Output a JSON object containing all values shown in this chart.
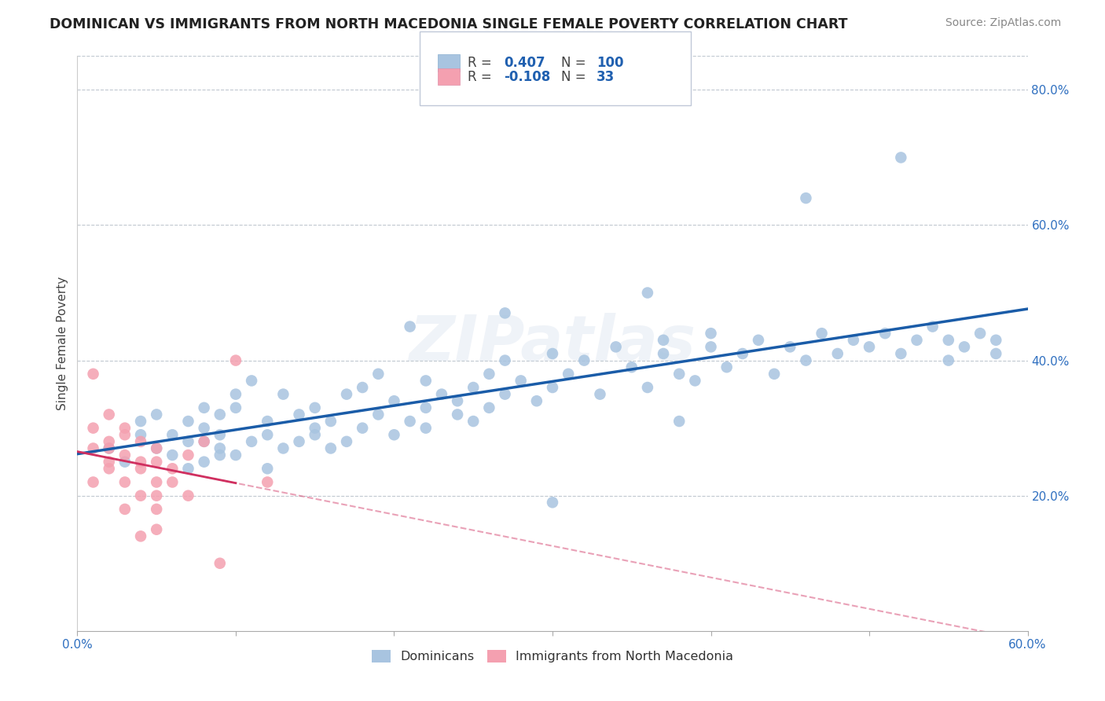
{
  "title": "DOMINICAN VS IMMIGRANTS FROM NORTH MACEDONIA SINGLE FEMALE POVERTY CORRELATION CHART",
  "source": "Source: ZipAtlas.com",
  "ylabel": "Single Female Poverty",
  "x_min": 0.0,
  "x_max": 0.6,
  "y_min": 0.0,
  "y_max": 0.85,
  "x_ticks": [
    0.0,
    0.1,
    0.2,
    0.3,
    0.4,
    0.5,
    0.6
  ],
  "x_tick_labels": [
    "0.0%",
    "",
    "",
    "",
    "",
    "",
    "60.0%"
  ],
  "y_ticks": [
    0.2,
    0.4,
    0.6,
    0.8
  ],
  "y_tick_labels": [
    "20.0%",
    "40.0%",
    "60.0%",
    "80.0%"
  ],
  "blue_R": 0.407,
  "blue_N": 100,
  "pink_R": -0.108,
  "pink_N": 33,
  "blue_color": "#a8c4e0",
  "pink_color": "#f4a0b0",
  "blue_line_color": "#1a5ca8",
  "pink_line_color": "#d03060",
  "watermark": "ZIPatlas",
  "legend_label_blue": "Dominicans",
  "legend_label_pink": "Immigrants from North Macedonia",
  "blue_scatter_x": [
    0.02,
    0.03,
    0.04,
    0.04,
    0.05,
    0.05,
    0.06,
    0.06,
    0.07,
    0.07,
    0.07,
    0.08,
    0.08,
    0.08,
    0.08,
    0.09,
    0.09,
    0.09,
    0.09,
    0.1,
    0.1,
    0.1,
    0.11,
    0.11,
    0.12,
    0.12,
    0.12,
    0.13,
    0.13,
    0.14,
    0.14,
    0.15,
    0.15,
    0.15,
    0.16,
    0.16,
    0.17,
    0.17,
    0.18,
    0.18,
    0.19,
    0.19,
    0.2,
    0.2,
    0.21,
    0.22,
    0.22,
    0.23,
    0.24,
    0.24,
    0.25,
    0.25,
    0.26,
    0.26,
    0.27,
    0.27,
    0.28,
    0.29,
    0.3,
    0.3,
    0.31,
    0.32,
    0.33,
    0.34,
    0.35,
    0.36,
    0.37,
    0.37,
    0.38,
    0.39,
    0.4,
    0.4,
    0.41,
    0.42,
    0.43,
    0.44,
    0.45,
    0.46,
    0.47,
    0.48,
    0.49,
    0.5,
    0.51,
    0.52,
    0.53,
    0.54,
    0.55,
    0.55,
    0.56,
    0.57,
    0.58,
    0.58,
    0.46,
    0.52,
    0.27,
    0.3,
    0.21,
    0.36,
    0.22,
    0.38
  ],
  "blue_scatter_y": [
    0.27,
    0.25,
    0.29,
    0.31,
    0.27,
    0.32,
    0.26,
    0.29,
    0.24,
    0.31,
    0.28,
    0.28,
    0.3,
    0.25,
    0.33,
    0.27,
    0.32,
    0.29,
    0.26,
    0.26,
    0.33,
    0.35,
    0.28,
    0.37,
    0.31,
    0.29,
    0.24,
    0.27,
    0.35,
    0.28,
    0.32,
    0.3,
    0.29,
    0.33,
    0.27,
    0.31,
    0.35,
    0.28,
    0.3,
    0.36,
    0.32,
    0.38,
    0.29,
    0.34,
    0.31,
    0.33,
    0.3,
    0.35,
    0.34,
    0.32,
    0.36,
    0.31,
    0.38,
    0.33,
    0.35,
    0.4,
    0.37,
    0.34,
    0.36,
    0.41,
    0.38,
    0.4,
    0.35,
    0.42,
    0.39,
    0.36,
    0.41,
    0.43,
    0.38,
    0.37,
    0.42,
    0.44,
    0.39,
    0.41,
    0.43,
    0.38,
    0.42,
    0.4,
    0.44,
    0.41,
    0.43,
    0.42,
    0.44,
    0.41,
    0.43,
    0.45,
    0.4,
    0.43,
    0.42,
    0.44,
    0.41,
    0.43,
    0.64,
    0.7,
    0.47,
    0.19,
    0.45,
    0.5,
    0.37,
    0.31
  ],
  "pink_scatter_x": [
    0.01,
    0.01,
    0.01,
    0.01,
    0.02,
    0.02,
    0.02,
    0.02,
    0.02,
    0.03,
    0.03,
    0.03,
    0.03,
    0.03,
    0.04,
    0.04,
    0.04,
    0.04,
    0.04,
    0.05,
    0.05,
    0.05,
    0.05,
    0.05,
    0.05,
    0.06,
    0.06,
    0.07,
    0.07,
    0.08,
    0.09,
    0.1,
    0.12
  ],
  "pink_scatter_y": [
    0.27,
    0.3,
    0.22,
    0.38,
    0.25,
    0.27,
    0.24,
    0.32,
    0.28,
    0.26,
    0.22,
    0.29,
    0.18,
    0.3,
    0.25,
    0.2,
    0.28,
    0.24,
    0.14,
    0.22,
    0.27,
    0.25,
    0.2,
    0.18,
    0.15,
    0.24,
    0.22,
    0.26,
    0.2,
    0.28,
    0.1,
    0.4,
    0.22
  ]
}
